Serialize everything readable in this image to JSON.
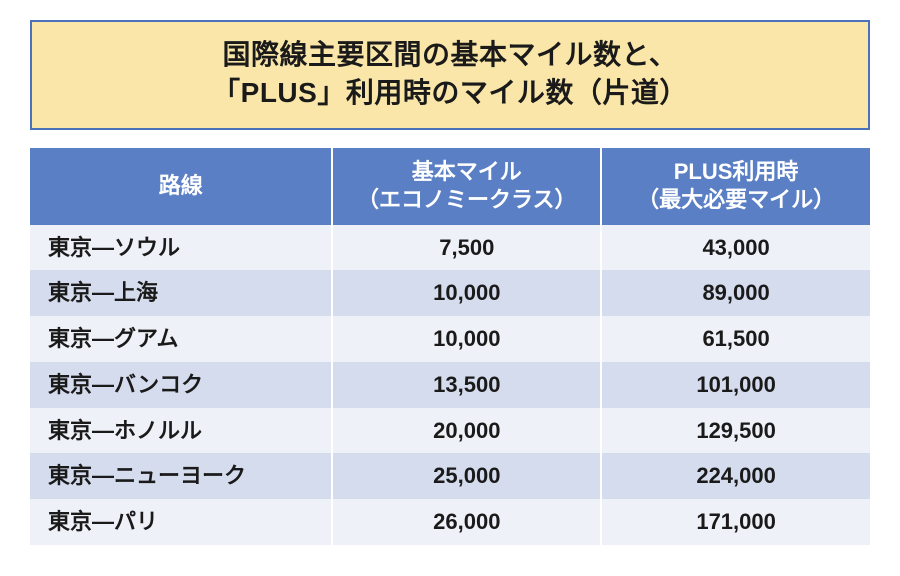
{
  "colors": {
    "title_bg": "#f9e6a8",
    "title_border": "#4a72b8",
    "title_text": "#1a1a1a",
    "header_bg": "#5a7fc4",
    "header_text": "#ffffff",
    "row_odd": "#eef1f7",
    "row_even": "#d5dced",
    "body_text": "#1a1a1a"
  },
  "typography": {
    "title_fontsize": 28,
    "header_fontsize": 22,
    "cell_fontsize": 22,
    "font_weight_title": 700,
    "font_weight_header": 700,
    "font_weight_cell": 600
  },
  "title": {
    "line1": "国際線主要区間の基本マイル数と、",
    "line2": "「PLUS」利用時のマイル数（片道）"
  },
  "table": {
    "type": "table",
    "columns": [
      {
        "label_line1": "路線",
        "label_line2": "",
        "width_pct": 36,
        "align": "left"
      },
      {
        "label_line1": "基本マイル",
        "label_line2": "（エコノミークラス）",
        "width_pct": 32,
        "align": "center"
      },
      {
        "label_line1": "PLUS利用時",
        "label_line2": "（最大必要マイル）",
        "width_pct": 32,
        "align": "center"
      }
    ],
    "rows": [
      {
        "route": "東京―ソウル",
        "base": "7,500",
        "plus": "43,000"
      },
      {
        "route": "東京―上海",
        "base": "10,000",
        "plus": "89,000"
      },
      {
        "route": "東京―グアム",
        "base": "10,000",
        "plus": "61,500"
      },
      {
        "route": "東京―バンコク",
        "base": "13,500",
        "plus": "101,000"
      },
      {
        "route": "東京―ホノルル",
        "base": "20,000",
        "plus": "129,500"
      },
      {
        "route": "東京―ニューヨーク",
        "base": "25,000",
        "plus": "224,000"
      },
      {
        "route": "東京―パリ",
        "base": "26,000",
        "plus": "171,000"
      }
    ]
  }
}
